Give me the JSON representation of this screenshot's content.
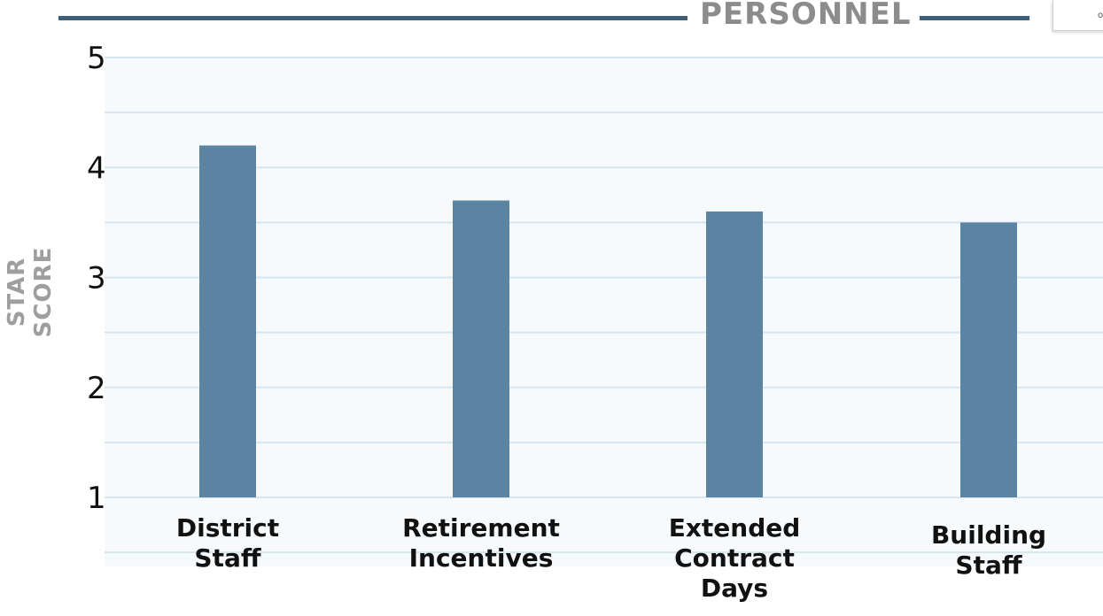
{
  "header": {
    "title": "PERSONNEL",
    "corner_mark": "o"
  },
  "chart_data": {
    "type": "bar",
    "ylabel": "STAR SCORE",
    "xlabel": "",
    "categories": [
      "District\nStaff",
      "Retirement\nIncentives",
      "Extended\nContract\nDays",
      "Building\nStaff"
    ],
    "values": [
      4.2,
      3.7,
      3.6,
      3.5
    ],
    "ylim": [
      1,
      5
    ],
    "yticks": [
      "1",
      "2",
      "3",
      "4",
      "5"
    ],
    "grid": true,
    "bar_color": "#5b84a3",
    "grid_color": "#d6e6ef",
    "title_color": "#8c8c8c",
    "rule_color": "#3f5f78"
  }
}
